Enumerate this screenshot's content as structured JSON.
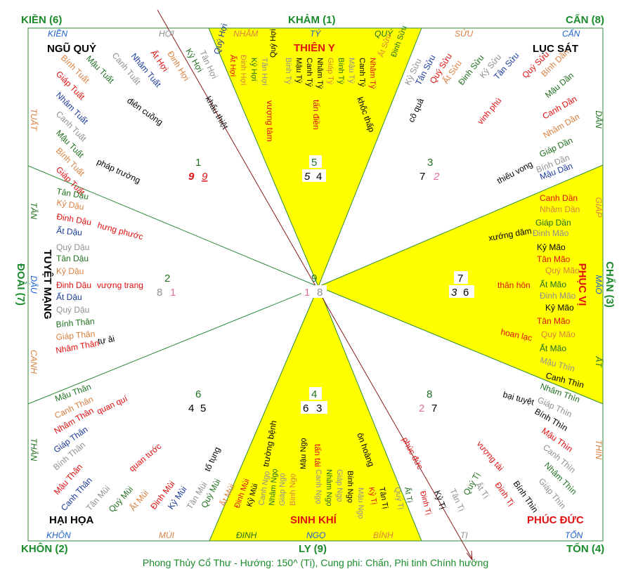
{
  "colors": {
    "border": "#2e8b3a",
    "highlight": "#ffff00",
    "arrow": "#8b1a1a",
    "gua_title": "#1a8a2a",
    "red": "#e01010",
    "blue": "#1a5fd0",
    "orange": "#d88040",
    "gray": "#909090",
    "pink": "#e070a0",
    "dark_green": "#207020"
  },
  "title": "Phong Thủy Cổ Thư - Hướng: 150^ (Tị), Cung phi: Chấn, Phi tinh Chính hướng",
  "corner_labels": {
    "kien": "KIỀN (6)",
    "kham": "KHẢM (1)",
    "can": "CẤN (8)",
    "doai": "ĐOÀI (7)",
    "chan": "CHẤN (3)",
    "khon": "KHÔN (2)",
    "ly": "LY (9)",
    "ton": "TỐN (4)"
  },
  "mountains": {
    "kien": "KIỀN",
    "hoi": "HỢI",
    "nham": "NHÂM",
    "ty_top": "TÝ",
    "quy": "QUÝ",
    "suu": "SỬU",
    "can_top": "CẤN",
    "tuat": "TUẤT",
    "tan": "TÂN",
    "dau": "DẬU",
    "canh": "CANH",
    "than_left": "THÂN",
    "dan": "DẦN",
    "giap": "GIÁP",
    "mao": "MÃO",
    "at_right": "ẤT",
    "thin": "THÌN",
    "khon": "KHÔN",
    "mui": "MÙI",
    "dinh": "ĐINH",
    "ngo": "NGỌ",
    "binh": "BÍNH",
    "ti_bottom": "TỊ",
    "ton": "TỐN"
  },
  "stars": {
    "thien_y": "THIÊN Y",
    "ngu_quy": "NGŨ QUỶ",
    "luc_sat": "LỤC SÁT",
    "tuyet_mang": "TUYỆT MẠNG",
    "phuc_vi": "PHỤC VỊ",
    "hai_hoa": "HẠI HỌA",
    "sinh_khi": "SINH KHÍ",
    "phuc_duc": "PHÚC ĐỨC"
  },
  "flying_stars": {
    "nw": {
      "base": "1",
      "left": "9",
      "right": "9"
    },
    "n": {
      "base": "5",
      "left": "5",
      "right": "4"
    },
    "ne": {
      "base": "3",
      "left": "7",
      "right": "2"
    },
    "w": {
      "base": "2",
      "left": "8",
      "right": "1"
    },
    "c": {
      "base": "9",
      "left": "1",
      "right": "8"
    },
    "e": {
      "base": "7",
      "left": "3",
      "right": "6"
    },
    "sw": {
      "base": "6",
      "left": "4",
      "right": "5"
    },
    "s": {
      "base": "4",
      "left": "6",
      "right": "3"
    },
    "se": {
      "base": "8",
      "left": "2",
      "right": "7"
    }
  },
  "sector_annotations": {
    "dien_cuong": "điên cuồng",
    "khau_thiet": "khẩu thiệt",
    "phap_truong": "pháp trường",
    "vuong_tam": "vượng tàm",
    "tan_dien": "tấn điền",
    "khoc_thap": "khốc thấp",
    "co_qua": "cô quả",
    "vinh_phu": "vinh phú",
    "thieu_vong": "thiếu vong",
    "hung_phuoc": "hưng phước",
    "vuong_trang": "vượng trang",
    "tu_ai": "tự ải",
    "xuong_dam": "xướng dâm",
    "than_hon": "thân hôn",
    "hoan_lac": "hoan lạc",
    "bai_tuyet": "bại tuyệt",
    "quan_qui": "quan quí",
    "quan_tuoc": "quan tước",
    "to_tung": "tố tụng",
    "truong_benh": "trường bệnh",
    "tan_tai": "tấn tài",
    "on_hoang": "ôn hoàng",
    "phuc_duc_small": "phúc đức",
    "vuong_tai": "vượng tài"
  },
  "stems": {
    "t1": "Bính Tuất",
    "t2": "Mậu Tuất",
    "t3": "Giáp Tuất",
    "t4": "Nhâm Tuất",
    "t5": "Canh Tuất",
    "t6": "Mậu Tuất",
    "t7": "Bính Tuất",
    "t8": "Giáp Tuất",
    "h1": "Canh Tuất",
    "h2": "Nhâm Tuất",
    "h3": "Ất Hợi",
    "h4": "Đinh Hợi",
    "h5": "Kỷ Hợi",
    "h6": "Tân Hợi",
    "h7": "Quý Hợi",
    "n1": "Ất Hợi",
    "n2": "Đinh Hợi",
    "n3": "Kỷ Hợi",
    "n4": "Tân Hợi",
    "n5": "Quý Hợi",
    "k1": "Bính Tý",
    "k2": "Mậu Tý",
    "k3": "Canh Tý",
    "k4": "Nhâm Tý",
    "k5": "Giáp Tý",
    "k6": "Bính Tý",
    "k7": "Mậu Tý",
    "k8": "Canh Tý",
    "k9": "Nhâm Tý",
    "s1": "Ất Sửu",
    "s2": "Đinh Sửu",
    "s3": "Kỷ Sửu",
    "s4": "Tân Sửu",
    "s5": "Quý Sửu",
    "s6": "Ất Sửu",
    "s7": "Đinh Sửu",
    "s8": "Kỷ Sửu",
    "s9": "Tân Sửu",
    "s10": "Quý Sửu",
    "d1": "Bính Dần",
    "d2": "Mậu Dần",
    "d3": "Canh Dần",
    "d4": "Nhâm Dần",
    "d5": "Giáp Dần",
    "d6": "Bính Dần",
    "d7": "Mậu Dần",
    "d8": "Canh Dần",
    "d9": "Nhâm Dần",
    "d10": "Giáp Dần",
    "m1": "Đinh Mão",
    "m2": "Kỷ Mão",
    "m3": "Tân Mão",
    "m4": "Quý Mão",
    "m5": "Ất Mão",
    "m6": "Đinh Mão",
    "m7": "Kỷ Mão",
    "m8": "Tân Mão",
    "m9": "Quý Mão",
    "m10": "Ất Mão",
    "th1": "Mậu Thìn",
    "th2": "Canh Thìn",
    "th3": "Nhâm Thìn",
    "th4": "Giáp Thìn",
    "th5": "Bính Thìn",
    "th6": "Mậu Thìn",
    "th7": "Canh Thìn",
    "th8": "Nhâm Thìn",
    "th9": "Giáp Thìn",
    "th10": "Bính Thìn",
    "dl1": "Tân Dậu",
    "dl2": "Kỷ Dậu",
    "dl3": "Đinh Dậu",
    "dl4": "Ất Dậu",
    "dl5": "Quý Dậu",
    "dl6": "Tân Dậu",
    "dl7": "Kỷ Dậu",
    "dl8": "Đinh Dậu",
    "dl9": "Ất Dậu",
    "dl10": "Quý Dậu",
    "tl1": "Canh Thân",
    "tl2": "Mậu Thân",
    "tl3": "Bính Thân",
    "tl4": "Giáp Thân",
    "tl5": "Nhâm Thân",
    "tl6": "Canh Thân",
    "tl7": "Mậu Thân",
    "tl8": "Bính Thân",
    "tl9": "Giáp Thân",
    "tl10": "Nhâm Thân",
    "mu1": "Kỷ Mùi",
    "mu2": "Đinh Mùi",
    "mu3": "Ất Mùi",
    "mu4": "Quý Mùi",
    "mu5": "Tân Mùi",
    "mu6": "Kỷ Mùi",
    "mu7": "Đinh Mùi",
    "mu8": "Ất Mùi",
    "mu9": "Quý Mùi",
    "mu10": "Tân Mùi",
    "ng1": "Mậu Ngọ",
    "ng2": "Bính Ngọ",
    "ng3": "Giáp Ngọ",
    "ng4": "Nhâm Ngọ",
    "ng5": "Canh Ngọ",
    "ng6": "Mậu Ngọ",
    "ng7": "Bính Ngọ",
    "ng8": "Giáp Ngọ",
    "ng9": "Nhâm Ngọ",
    "ng10": "Canh Ngọ",
    "ti1": "Đinh Tị",
    "ti2": "Ất Tị",
    "ti3": "Quý Tị",
    "ti4": "Tân Tị",
    "ti5": "Kỷ Tị",
    "ti6": "Đinh Tị",
    "ti7": "Ất Tị",
    "ti8": "Quý Tị",
    "ti9": "Tân Tị",
    "ti10": "Kỷ Tị"
  }
}
